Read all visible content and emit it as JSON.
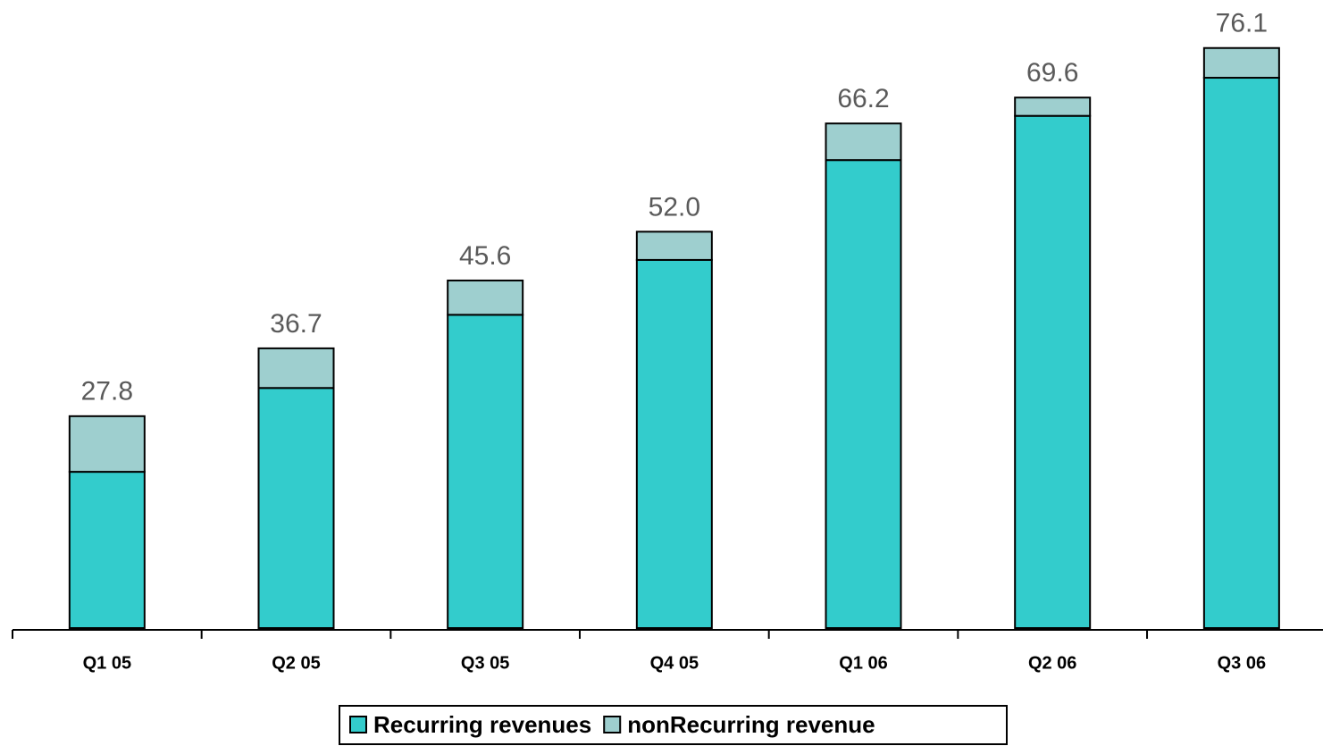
{
  "chart_data": {
    "type": "stacked_bar",
    "categories": [
      "Q1 05",
      "Q2 05",
      "Q3 05",
      "Q4 05",
      "Q1 06",
      "Q2 06",
      "Q3 06"
    ],
    "series": [
      {
        "name": "Recurring revenues",
        "color": "#33cccc",
        "values": [
          20.5,
          31.5,
          41.1,
          48.3,
          61.4,
          67.2,
          72.2
        ]
      },
      {
        "name": "nonRecurring revenue",
        "color": "#9ecfcf",
        "values": [
          7.3,
          5.2,
          4.5,
          3.7,
          4.8,
          2.4,
          3.9
        ]
      }
    ],
    "totals": [
      27.8,
      36.7,
      45.6,
      52.0,
      66.2,
      69.6,
      76.1
    ],
    "total_labels": [
      "27.8",
      "36.7",
      "45.6",
      "52.0",
      "66.2",
      "69.6",
      "76.1"
    ],
    "ylim": [
      0,
      82.4
    ],
    "legend": "bottom"
  }
}
